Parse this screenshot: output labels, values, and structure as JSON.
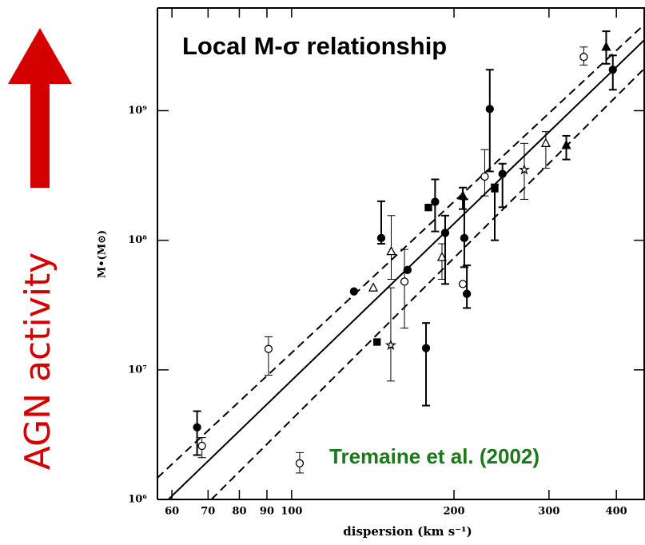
{
  "chart_data": {
    "type": "scatter",
    "title": "Local M-σ relationship",
    "annotation": "Tremaine et al. (2002)",
    "side_label": "AGN activity",
    "x_label": "dispersion (km s⁻¹)",
    "y_label": "M•(M⊙)",
    "log_x": true,
    "log_y": true,
    "xlim": [
      56.4,
      452
    ],
    "ylim": [
      1000000,
      6200000000
    ],
    "xticks": [
      60,
      70,
      80,
      90,
      100,
      200,
      300,
      400
    ],
    "yticks": [
      {
        "value": 1000000,
        "label": "10⁶"
      },
      {
        "value": 10000000,
        "label": "10⁷"
      },
      {
        "value": 100000000,
        "label": "10⁸"
      },
      {
        "value": 1000000000,
        "label": "10⁹"
      }
    ],
    "color": "#000000",
    "x": [
      66.8,
      68.2,
      90.6,
      103.5,
      130.5,
      141.7,
      144,
      146.6,
      152.7,
      153,
      161.9,
      164,
      177.5,
      179.3,
      184.5,
      190,
      192.6,
      207.7,
      207.7,
      209,
      211.3,
      228,
      233,
      238,
      246,
      270,
      296,
      323,
      348,
      383,
      394
    ],
    "values": [
      3600000,
      2590000,
      14500000,
      1900000,
      40300000,
      43000000,
      16400000,
      104000000,
      15500000,
      82000000,
      48000000,
      59000000,
      14700000,
      179000000,
      198000000,
      74000000,
      114000000,
      220000000,
      46000000,
      104000000,
      38600000,
      310000000,
      1030000000,
      250000000,
      325000000,
      350000000,
      560000000,
      540000000,
      2600000000,
      3100000000,
      2070000000
    ],
    "lower": [
      2200000,
      2100000,
      9100000,
      1600000,
      null,
      null,
      null,
      94000000,
      8200000,
      50000000,
      21000000,
      null,
      5300000,
      null,
      117000000,
      50000000,
      46000000,
      174000000,
      null,
      62000000,
      30000000,
      220000000,
      340000000,
      100000000,
      180000000,
      207000000,
      360000000,
      420000000,
      2250000000,
      2300000000,
      1450000000
    ],
    "upper": [
      4800000,
      3000000,
      18000000,
      2300000,
      null,
      null,
      null,
      200000000,
      43000000,
      155000000,
      85000000,
      null,
      23000000,
      null,
      295000000,
      94000000,
      155000000,
      255000000,
      null,
      207000000,
      64000000,
      500000000,
      2070000000,
      270000000,
      390000000,
      560000000,
      690000000,
      640000000,
      3100000000,
      4100000000,
      2670000000
    ],
    "markers": [
      "circle",
      "circle",
      "circle",
      "circle",
      "circle",
      "triangle",
      "square",
      "circle",
      "star",
      "triangle",
      "circle",
      "circle",
      "circle",
      "square",
      "circle",
      "triangle",
      "circle",
      "triangle",
      "circle",
      "circle",
      "circle",
      "circle",
      "circle",
      "square",
      "circle",
      "star",
      "triangle",
      "triangle",
      "circle",
      "triangle",
      "circle"
    ],
    "filled": [
      true,
      false,
      false,
      false,
      true,
      false,
      true,
      true,
      false,
      false,
      false,
      true,
      true,
      true,
      true,
      false,
      true,
      true,
      false,
      true,
      true,
      false,
      true,
      true,
      true,
      false,
      false,
      true,
      false,
      true,
      true
    ],
    "fit_lines": [
      {
        "style": "solid",
        "x": [
          56.4,
          452
        ],
        "values": [
          830000,
          3550000000
        ]
      },
      {
        "style": "dashed",
        "x": [
          56.4,
          452
        ],
        "values": [
          1470000,
          4680000000
        ]
      },
      {
        "style": "dashed",
        "x": [
          71,
          452
        ],
        "values": [
          1000000,
          2140000000
        ]
      }
    ]
  }
}
